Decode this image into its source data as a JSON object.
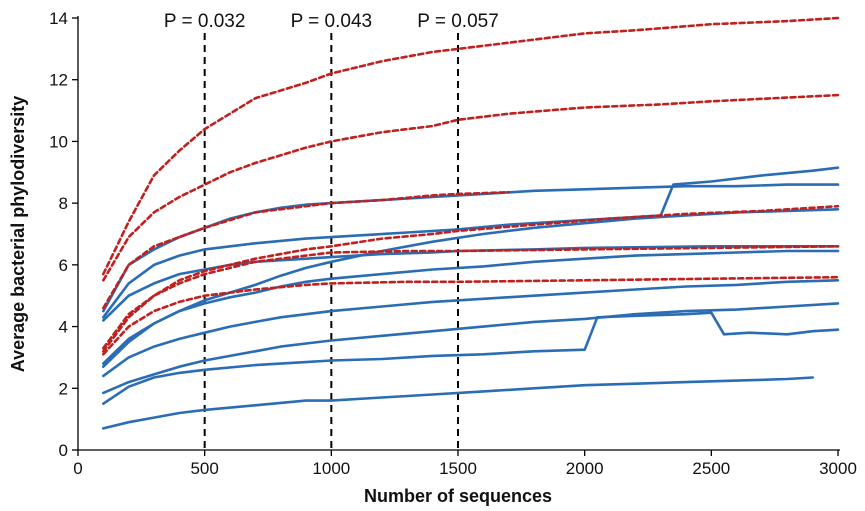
{
  "chart_data": {
    "type": "line",
    "title": "",
    "xlabel": "Number of sequences",
    "ylabel": "Average bacterial phylodiversity",
    "xlim": [
      0,
      3000
    ],
    "ylim": [
      0,
      14
    ],
    "x_ticks": [
      0,
      500,
      1000,
      1500,
      2000,
      2500,
      3000
    ],
    "y_ticks": [
      0,
      2,
      4,
      6,
      8,
      10,
      12,
      14
    ],
    "grid": false,
    "legend": "none",
    "colors": {
      "solid": "#2a6db5",
      "dashed": "#c0201e",
      "axis": "#000000"
    },
    "vlines": [
      {
        "x": 500,
        "label": "P = 0.032"
      },
      {
        "x": 1000,
        "label": "P = 0.043"
      },
      {
        "x": 1500,
        "label": "P = 0.057"
      }
    ],
    "series": [
      {
        "style": "dashed",
        "points": [
          [
            100,
            5.7
          ],
          [
            200,
            7.4
          ],
          [
            300,
            8.9
          ],
          [
            400,
            9.7
          ],
          [
            500,
            10.4
          ],
          [
            700,
            11.4
          ],
          [
            900,
            11.9
          ],
          [
            1000,
            12.2
          ],
          [
            1200,
            12.6
          ],
          [
            1400,
            12.9
          ],
          [
            1500,
            13.0
          ],
          [
            1700,
            13.2
          ],
          [
            2000,
            13.5
          ],
          [
            2200,
            13.6
          ],
          [
            2500,
            13.8
          ],
          [
            2800,
            13.9
          ],
          [
            3000,
            14.0
          ]
        ]
      },
      {
        "style": "dashed",
        "points": [
          [
            100,
            5.5
          ],
          [
            200,
            6.9
          ],
          [
            300,
            7.7
          ],
          [
            400,
            8.2
          ],
          [
            500,
            8.6
          ],
          [
            600,
            9.0
          ],
          [
            700,
            9.3
          ],
          [
            900,
            9.8
          ],
          [
            1000,
            10.0
          ],
          [
            1200,
            10.3
          ],
          [
            1400,
            10.5
          ],
          [
            1500,
            10.7
          ],
          [
            1700,
            10.9
          ],
          [
            2000,
            11.1
          ],
          [
            2300,
            11.2
          ],
          [
            2500,
            11.3
          ],
          [
            3000,
            11.5
          ]
        ]
      },
      {
        "style": "dashed",
        "points": [
          [
            100,
            4.6
          ],
          [
            200,
            6.0
          ],
          [
            300,
            6.6
          ],
          [
            400,
            6.9
          ],
          [
            500,
            7.2
          ],
          [
            700,
            7.7
          ],
          [
            900,
            7.9
          ],
          [
            1000,
            8.0
          ],
          [
            1200,
            8.1
          ],
          [
            1400,
            8.25
          ],
          [
            1500,
            8.3
          ],
          [
            1700,
            8.35
          ]
        ]
      },
      {
        "style": "dashed",
        "points": [
          [
            100,
            3.3
          ],
          [
            200,
            4.4
          ],
          [
            300,
            5.0
          ],
          [
            400,
            5.5
          ],
          [
            500,
            5.8
          ],
          [
            700,
            6.2
          ],
          [
            900,
            6.5
          ],
          [
            1000,
            6.6
          ],
          [
            1200,
            6.85
          ],
          [
            1400,
            7.0
          ],
          [
            1500,
            7.1
          ],
          [
            1800,
            7.3
          ],
          [
            2100,
            7.5
          ],
          [
            2400,
            7.65
          ],
          [
            2700,
            7.75
          ],
          [
            3000,
            7.9
          ]
        ]
      },
      {
        "style": "dashed",
        "points": [
          [
            100,
            3.2
          ],
          [
            200,
            4.3
          ],
          [
            300,
            5.0
          ],
          [
            400,
            5.4
          ],
          [
            500,
            5.7
          ],
          [
            600,
            5.9
          ],
          [
            700,
            6.1
          ],
          [
            900,
            6.3
          ],
          [
            1000,
            6.4
          ],
          [
            1300,
            6.45
          ],
          [
            1500,
            6.45
          ],
          [
            2000,
            6.5
          ],
          [
            2500,
            6.55
          ],
          [
            3000,
            6.6
          ]
        ]
      },
      {
        "style": "dashed",
        "points": [
          [
            100,
            3.1
          ],
          [
            200,
            4.0
          ],
          [
            300,
            4.5
          ],
          [
            400,
            4.8
          ],
          [
            500,
            5.0
          ],
          [
            700,
            5.2
          ],
          [
            900,
            5.35
          ],
          [
            1000,
            5.4
          ],
          [
            1300,
            5.45
          ],
          [
            1500,
            5.45
          ],
          [
            2000,
            5.5
          ],
          [
            2500,
            5.55
          ],
          [
            3000,
            5.6
          ]
        ]
      },
      {
        "style": "solid",
        "points": [
          [
            100,
            4.5
          ],
          [
            200,
            6.0
          ],
          [
            300,
            6.5
          ],
          [
            400,
            6.9
          ],
          [
            500,
            7.2
          ],
          [
            600,
            7.5
          ],
          [
            700,
            7.7
          ],
          [
            800,
            7.85
          ],
          [
            900,
            7.95
          ],
          [
            1000,
            8.0
          ],
          [
            1200,
            8.1
          ],
          [
            1400,
            8.2
          ],
          [
            1600,
            8.3
          ],
          [
            1800,
            8.4
          ],
          [
            2000,
            8.45
          ],
          [
            2200,
            8.5
          ],
          [
            2400,
            8.55
          ],
          [
            2600,
            8.55
          ],
          [
            2800,
            8.6
          ],
          [
            3000,
            8.6
          ]
        ]
      },
      {
        "style": "solid",
        "points": [
          [
            100,
            4.3
          ],
          [
            200,
            5.4
          ],
          [
            300,
            6.0
          ],
          [
            400,
            6.3
          ],
          [
            500,
            6.5
          ],
          [
            700,
            6.7
          ],
          [
            900,
            6.85
          ],
          [
            1000,
            6.9
          ],
          [
            1300,
            7.05
          ],
          [
            1500,
            7.15
          ],
          [
            1700,
            7.3
          ],
          [
            2000,
            7.45
          ],
          [
            2300,
            7.6
          ],
          [
            2350,
            8.6
          ],
          [
            2500,
            8.7
          ],
          [
            2700,
            8.9
          ],
          [
            2900,
            9.05
          ],
          [
            3000,
            9.15
          ]
        ]
      },
      {
        "style": "solid",
        "points": [
          [
            100,
            4.2
          ],
          [
            200,
            5.0
          ],
          [
            300,
            5.4
          ],
          [
            400,
            5.7
          ],
          [
            500,
            5.85
          ],
          [
            600,
            6.0
          ],
          [
            700,
            6.1
          ],
          [
            900,
            6.2
          ],
          [
            1000,
            6.25
          ],
          [
            1200,
            6.35
          ],
          [
            1400,
            6.4
          ],
          [
            1500,
            6.45
          ],
          [
            1800,
            6.5
          ],
          [
            2000,
            6.55
          ],
          [
            2500,
            6.6
          ],
          [
            3000,
            6.6
          ]
        ]
      },
      {
        "style": "solid",
        "points": [
          [
            100,
            2.8
          ],
          [
            200,
            3.6
          ],
          [
            300,
            4.1
          ],
          [
            400,
            4.5
          ],
          [
            500,
            4.85
          ],
          [
            600,
            5.1
          ],
          [
            700,
            5.35
          ],
          [
            800,
            5.65
          ],
          [
            900,
            5.9
          ],
          [
            1000,
            6.1
          ],
          [
            1200,
            6.45
          ],
          [
            1400,
            6.75
          ],
          [
            1600,
            7.0
          ],
          [
            1800,
            7.2
          ],
          [
            2000,
            7.35
          ],
          [
            2200,
            7.5
          ],
          [
            2400,
            7.6
          ],
          [
            2600,
            7.7
          ],
          [
            2800,
            7.75
          ],
          [
            3000,
            7.8
          ]
        ]
      },
      {
        "style": "solid",
        "points": [
          [
            100,
            2.7
          ],
          [
            200,
            3.5
          ],
          [
            300,
            4.1
          ],
          [
            400,
            4.5
          ],
          [
            500,
            4.75
          ],
          [
            600,
            4.95
          ],
          [
            700,
            5.1
          ],
          [
            800,
            5.3
          ],
          [
            900,
            5.45
          ],
          [
            1000,
            5.55
          ],
          [
            1200,
            5.7
          ],
          [
            1400,
            5.85
          ],
          [
            1600,
            5.95
          ],
          [
            1800,
            6.1
          ],
          [
            2000,
            6.2
          ],
          [
            2200,
            6.3
          ],
          [
            2400,
            6.35
          ],
          [
            2600,
            6.4
          ],
          [
            2800,
            6.45
          ],
          [
            3000,
            6.45
          ]
        ]
      },
      {
        "style": "solid",
        "points": [
          [
            100,
            2.4
          ],
          [
            200,
            3.0
          ],
          [
            300,
            3.35
          ],
          [
            400,
            3.6
          ],
          [
            500,
            3.8
          ],
          [
            600,
            4.0
          ],
          [
            700,
            4.15
          ],
          [
            800,
            4.3
          ],
          [
            900,
            4.4
          ],
          [
            1000,
            4.5
          ],
          [
            1200,
            4.65
          ],
          [
            1400,
            4.8
          ],
          [
            1600,
            4.9
          ],
          [
            1800,
            5.0
          ],
          [
            2000,
            5.1
          ],
          [
            2200,
            5.2
          ],
          [
            2400,
            5.3
          ],
          [
            2600,
            5.35
          ],
          [
            2800,
            5.45
          ],
          [
            3000,
            5.5
          ]
        ]
      },
      {
        "style": "solid",
        "points": [
          [
            100,
            1.85
          ],
          [
            200,
            2.2
          ],
          [
            300,
            2.45
          ],
          [
            400,
            2.7
          ],
          [
            500,
            2.9
          ],
          [
            600,
            3.05
          ],
          [
            700,
            3.2
          ],
          [
            800,
            3.35
          ],
          [
            900,
            3.45
          ],
          [
            1000,
            3.55
          ],
          [
            1200,
            3.7
          ],
          [
            1400,
            3.85
          ],
          [
            1600,
            4.0
          ],
          [
            1800,
            4.15
          ],
          [
            2000,
            4.25
          ],
          [
            2200,
            4.4
          ],
          [
            2400,
            4.5
          ],
          [
            2600,
            4.55
          ],
          [
            2800,
            4.65
          ],
          [
            3000,
            4.75
          ]
        ]
      },
      {
        "style": "solid",
        "points": [
          [
            100,
            1.5
          ],
          [
            200,
            2.05
          ],
          [
            300,
            2.35
          ],
          [
            400,
            2.5
          ],
          [
            500,
            2.6
          ],
          [
            700,
            2.75
          ],
          [
            900,
            2.85
          ],
          [
            1000,
            2.9
          ],
          [
            1200,
            2.95
          ],
          [
            1400,
            3.05
          ],
          [
            1600,
            3.1
          ],
          [
            1800,
            3.2
          ],
          [
            2000,
            3.25
          ],
          [
            2050,
            4.3
          ],
          [
            2200,
            4.35
          ],
          [
            2400,
            4.4
          ],
          [
            2500,
            4.45
          ],
          [
            2550,
            3.75
          ],
          [
            2650,
            3.8
          ],
          [
            2800,
            3.75
          ],
          [
            2900,
            3.85
          ],
          [
            3000,
            3.9
          ]
        ]
      },
      {
        "style": "solid",
        "points": [
          [
            100,
            0.7
          ],
          [
            200,
            0.9
          ],
          [
            300,
            1.05
          ],
          [
            400,
            1.2
          ],
          [
            500,
            1.3
          ],
          [
            700,
            1.45
          ],
          [
            900,
            1.6
          ],
          [
            1000,
            1.6
          ],
          [
            1200,
            1.7
          ],
          [
            1400,
            1.8
          ],
          [
            1600,
            1.9
          ],
          [
            1800,
            2.0
          ],
          [
            2000,
            2.1
          ],
          [
            2200,
            2.15
          ],
          [
            2400,
            2.2
          ],
          [
            2600,
            2.25
          ],
          [
            2800,
            2.3
          ],
          [
            2900,
            2.35
          ]
        ]
      }
    ]
  }
}
